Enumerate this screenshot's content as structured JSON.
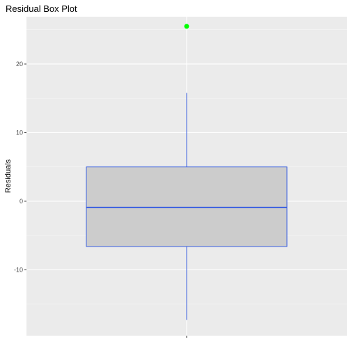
{
  "chart_data": {
    "type": "box",
    "title": "Residual Box Plot",
    "xlabel": "",
    "ylabel": "Residuals",
    "ylim": [
      -19.6,
      26.9
    ],
    "y_ticks": [
      -10,
      0,
      10,
      20
    ],
    "y_tick_labels": [
      "-10",
      "0",
      "10",
      "20"
    ],
    "grid": true,
    "legend": "none",
    "box": {
      "whisker_low": -17.3,
      "q1": -6.6,
      "median": -0.9,
      "q3": 5.0,
      "whisker_high": 15.8,
      "outliers": [
        25.5
      ]
    },
    "colors": {
      "panel_background": "#ebebeb",
      "grid_major": "#ffffff",
      "grid_minor": "#f5f5f5",
      "box_fill": "#cccccc",
      "box_line": "#3a5fe0",
      "outlier": "#00ff00"
    }
  }
}
